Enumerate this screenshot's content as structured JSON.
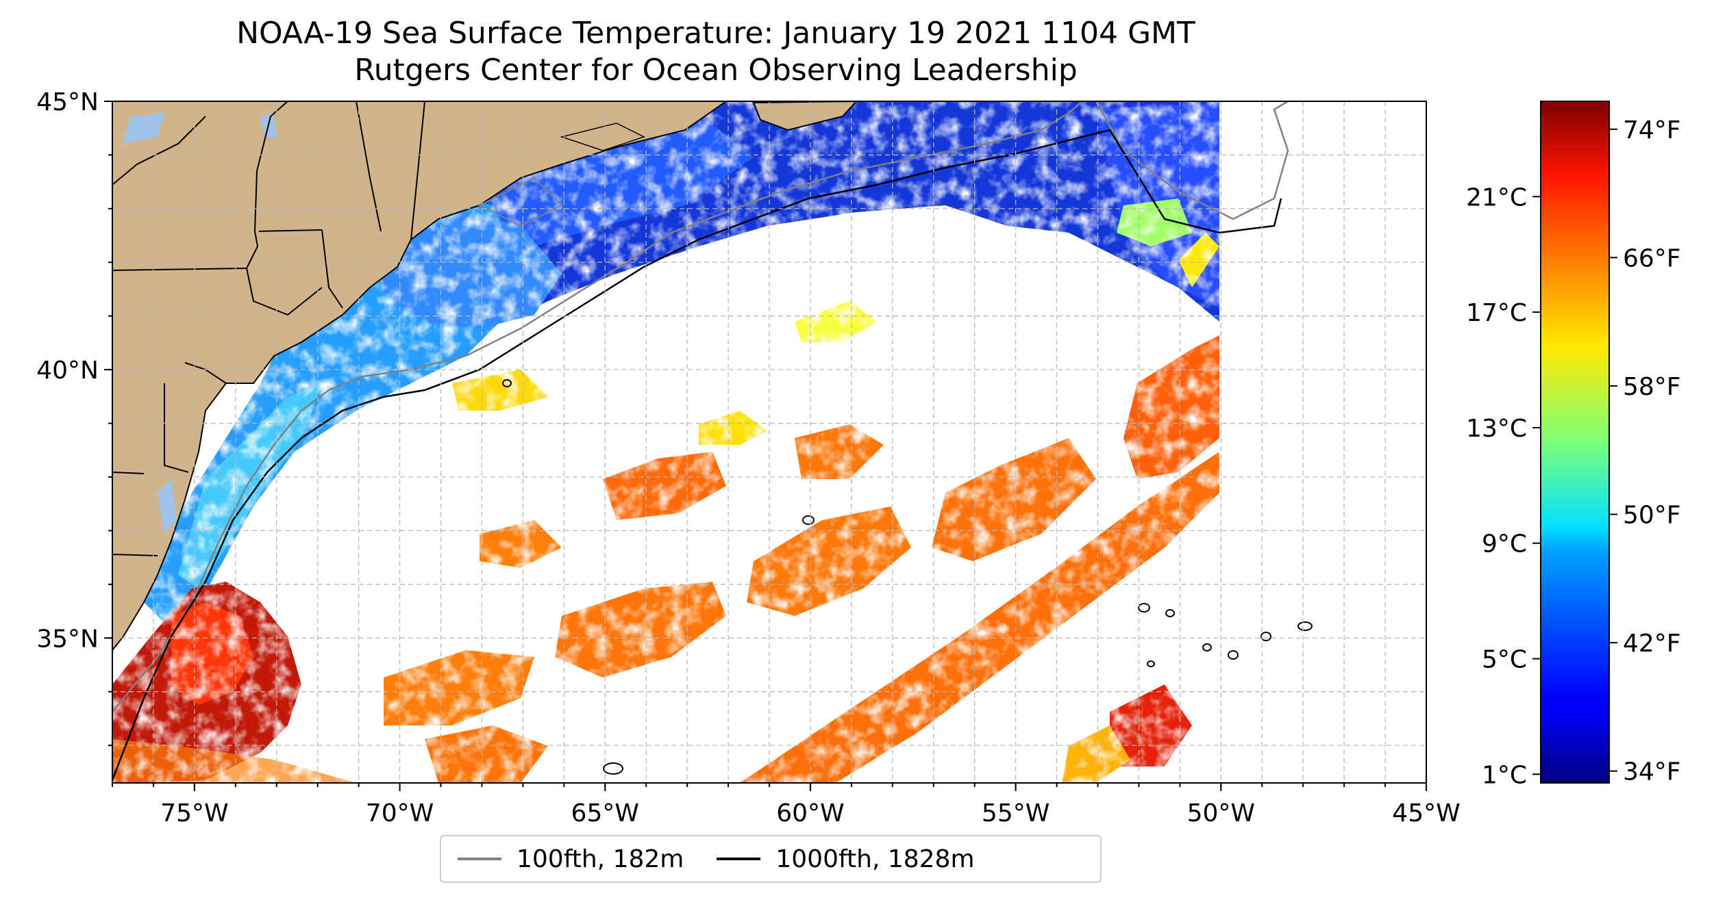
{
  "title": {
    "line1": "NOAA-19 Sea Surface Temperature: January 19 2021 1104 GMT",
    "line2": "Rutgers Center for Ocean Observing Leadership"
  },
  "map": {
    "lon_range": [
      -77,
      -45
    ],
    "lat_range": [
      32.3,
      45
    ],
    "lon_ticks": [
      {
        "lon": -75,
        "label": "75°W"
      },
      {
        "lon": -70,
        "label": "70°W"
      },
      {
        "lon": -65,
        "label": "65°W"
      },
      {
        "lon": -60,
        "label": "60°W"
      },
      {
        "lon": -55,
        "label": "55°W"
      },
      {
        "lon": -50,
        "label": "50°W"
      },
      {
        "lon": -45,
        "label": "45°W"
      }
    ],
    "lat_ticks": [
      {
        "lat": 45,
        "label": "45°N"
      },
      {
        "lat": 40,
        "label": "40°N"
      },
      {
        "lat": 35,
        "label": "35°N"
      }
    ],
    "gridlines": "dashed",
    "land_color": "#d2b48c",
    "ocean_color": "#ffffff"
  },
  "colorbar": {
    "colormap": "jet",
    "celsius_range": [
      0.7,
      24.3
    ],
    "celsius_ticks": [
      {
        "value": 1,
        "label": "1°C"
      },
      {
        "value": 5,
        "label": "5°C"
      },
      {
        "value": 9,
        "label": "9°C"
      },
      {
        "value": 13,
        "label": "13°C"
      },
      {
        "value": 17,
        "label": "17°C"
      },
      {
        "value": 21,
        "label": "21°C"
      }
    ],
    "fahrenheit_ticks": [
      {
        "value": 34,
        "label": "34°F"
      },
      {
        "value": 42,
        "label": "42°F"
      },
      {
        "value": 50,
        "label": "50°F"
      },
      {
        "value": 58,
        "label": "58°F"
      },
      {
        "value": 66,
        "label": "66°F"
      },
      {
        "value": 74,
        "label": "74°F"
      }
    ]
  },
  "legend": {
    "items": [
      {
        "label": "100fth, 182m",
        "color": "#808080"
      },
      {
        "label": "1000fth, 1828m",
        "color": "#000000"
      }
    ]
  }
}
